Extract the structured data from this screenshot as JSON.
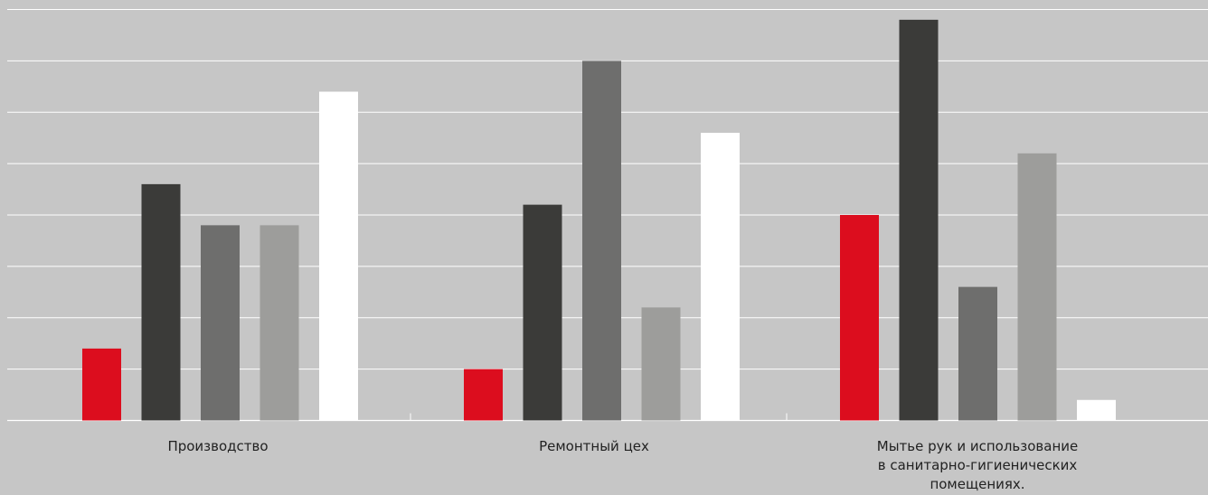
{
  "chart_data": {
    "type": "bar",
    "categories": [
      [
        "Производство"
      ],
      [
        "Ремонтный цех"
      ],
      [
        "Мытье рук и использование",
        "в санитарно-гигиенических",
        "помещениях."
      ]
    ],
    "series": [
      {
        "color": "#dc0d1e",
        "values": [
          1.4,
          1.0,
          4.0
        ]
      },
      {
        "color": "#3b3b39",
        "values": [
          4.6,
          4.2,
          7.8
        ]
      },
      {
        "color": "#6e6e6d",
        "values": [
          3.8,
          7.0,
          2.6
        ]
      },
      {
        "color": "#9d9d9b",
        "values": [
          3.8,
          2.2,
          5.2
        ]
      },
      {
        "color": "#ffffff",
        "values": [
          6.4,
          5.6,
          0.4
        ]
      }
    ],
    "ylim": [
      0,
      8
    ],
    "gridlines": 8,
    "grid": true,
    "background": "#c6c6c6",
    "gridline_color": "#ffffff",
    "label_color": "#222222"
  }
}
